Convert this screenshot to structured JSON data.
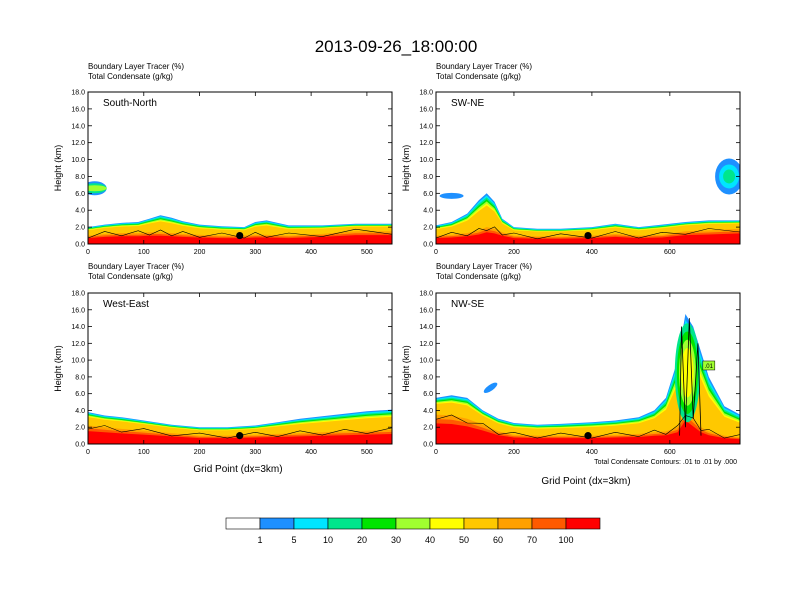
{
  "title": "2013-09-26_18:00:00",
  "panel_header": {
    "line1": "Boundary Layer Tracer   (%)",
    "line2": "Total Condensate   (g/kg)"
  },
  "ylabel": "Height (km)",
  "xlabel": "Grid Point (dx=3km)",
  "contour_note": "Total Condensate Contours: .01 to .01 by .000",
  "contour_label": ".01",
  "palette": {
    "levels": [
      "1",
      "5",
      "10",
      "20",
      "30",
      "40",
      "50",
      "60",
      "70",
      "100"
    ],
    "colors": [
      "#ffffff",
      "#1e90ff",
      "#00e5ff",
      "#00e68c",
      "#00e400",
      "#a0ff30",
      "#ffff00",
      "#ffc800",
      "#ffa000",
      "#ff5a00",
      "#ff0000"
    ]
  },
  "chart_data": [
    {
      "type": "heatmap",
      "name": "South-North",
      "ylim": [
        0,
        18
      ],
      "xlim": [
        0,
        545
      ],
      "xticks": [
        0,
        100,
        200,
        300,
        400,
        500
      ],
      "yticks": [
        "0.0",
        "2.0",
        "4.0",
        "6.0",
        "8.0",
        "10.0",
        "12.0",
        "14.0",
        "16.0",
        "18.0"
      ],
      "marker": {
        "x": 272,
        "y": 1.0
      },
      "x": [
        0,
        30,
        60,
        90,
        110,
        130,
        150,
        170,
        200,
        240,
        280,
        300,
        320,
        360,
        420,
        480,
        545
      ],
      "red": [
        1.0,
        1.2,
        1.3,
        1.3,
        1.4,
        1.4,
        1.3,
        1.2,
        1.1,
        1.0,
        1.0,
        1.1,
        1.1,
        1.0,
        1.2,
        1.5,
        1.5
      ],
      "cloud": [
        2.0,
        2.3,
        2.5,
        2.6,
        3.0,
        3.4,
        3.1,
        2.7,
        2.3,
        2.1,
        2.0,
        2.6,
        2.8,
        2.2,
        2.2,
        2.4,
        2.4
      ]
    },
    {
      "type": "heatmap",
      "name": "SW-NE",
      "ylim": [
        0,
        18
      ],
      "xlim": [
        0,
        780
      ],
      "xticks": [
        0,
        200,
        400,
        600
      ],
      "yticks": [
        "0.0",
        "2.0",
        "4.0",
        "6.0",
        "8.0",
        "10.0",
        "12.0",
        "14.0",
        "16.0",
        "18.0"
      ],
      "marker": {
        "x": 390,
        "y": 1.0
      },
      "x": [
        0,
        40,
        80,
        110,
        130,
        150,
        170,
        200,
        260,
        320,
        400,
        460,
        520,
        580,
        640,
        700,
        780
      ],
      "red": [
        1.0,
        1.1,
        1.3,
        1.6,
        2.0,
        1.8,
        1.4,
        1.0,
        0.9,
        0.9,
        1.0,
        1.2,
        1.0,
        1.1,
        1.5,
        1.6,
        1.8
      ],
      "cloud": [
        2.2,
        2.6,
        3.6,
        5.2,
        6.0,
        5.0,
        3.0,
        2.0,
        1.8,
        1.8,
        2.0,
        2.4,
        2.0,
        2.3,
        2.6,
        2.8,
        2.8
      ]
    },
    {
      "type": "heatmap",
      "name": "West-East",
      "ylim": [
        0,
        18
      ],
      "xlim": [
        0,
        545
      ],
      "xticks": [
        0,
        100,
        200,
        300,
        400,
        500
      ],
      "yticks": [
        "0.0",
        "2.0",
        "4.0",
        "6.0",
        "8.0",
        "10.0",
        "12.0",
        "14.0",
        "16.0",
        "18.0"
      ],
      "marker": {
        "x": 272,
        "y": 1.0
      },
      "x": [
        0,
        30,
        60,
        100,
        150,
        200,
        250,
        300,
        340,
        380,
        420,
        460,
        500,
        545
      ],
      "red": [
        2.2,
        2.0,
        1.8,
        1.6,
        1.3,
        1.0,
        1.0,
        1.1,
        1.2,
        1.3,
        1.4,
        1.5,
        1.6,
        1.7
      ],
      "cloud": [
        3.8,
        3.4,
        3.2,
        2.8,
        2.3,
        2.0,
        2.0,
        2.2,
        2.6,
        3.0,
        3.3,
        3.6,
        3.9,
        4.1
      ]
    },
    {
      "type": "heatmap",
      "name": "NW-SE",
      "ylim": [
        0,
        18
      ],
      "xlim": [
        0,
        780
      ],
      "xticks": [
        0,
        200,
        400,
        600
      ],
      "yticks": [
        "0.0",
        "2.0",
        "4.0",
        "6.0",
        "8.0",
        "10.0",
        "12.0",
        "14.0",
        "16.0",
        "18.0"
      ],
      "marker": {
        "x": 390,
        "y": 1.0
      },
      "x": [
        0,
        40,
        80,
        120,
        160,
        200,
        260,
        320,
        400,
        460,
        520,
        560,
        590,
        620,
        640,
        660,
        680,
        700,
        740,
        780
      ],
      "red": [
        3.5,
        3.4,
        3.0,
        2.3,
        1.5,
        1.1,
        1.0,
        1.0,
        1.0,
        1.1,
        1.2,
        1.4,
        1.5,
        2.0,
        4.0,
        3.0,
        2.0,
        1.5,
        1.0,
        0.8
      ],
      "cloud": [
        5.5,
        5.8,
        5.5,
        4.0,
        3.0,
        2.5,
        2.3,
        2.4,
        2.6,
        2.8,
        3.2,
        4.0,
        5.5,
        10.0,
        15.5,
        14.0,
        11.0,
        8.0,
        4.5,
        3.5
      ]
    }
  ]
}
